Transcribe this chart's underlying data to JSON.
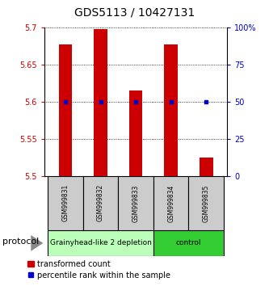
{
  "title": "GDS5113 / 10427131",
  "samples": [
    "GSM999831",
    "GSM999832",
    "GSM999833",
    "GSM999834",
    "GSM999835"
  ],
  "red_values": [
    5.677,
    5.697,
    5.615,
    5.677,
    5.525
  ],
  "blue_pct": [
    50,
    50,
    50,
    50,
    50
  ],
  "y_min": 5.5,
  "y_max": 5.7,
  "y_ticks_left": [
    5.5,
    5.55,
    5.6,
    5.65,
    5.7
  ],
  "y_ticks_right": [
    0,
    25,
    50,
    75,
    100
  ],
  "groups": [
    {
      "label": "Grainyhead-like 2 depletion",
      "indices": [
        0,
        1,
        2
      ],
      "color": "#bbffbb",
      "border": "#000000"
    },
    {
      "label": "control",
      "indices": [
        3,
        4
      ],
      "color": "#33cc33",
      "border": "#000000"
    }
  ],
  "protocol_label": "protocol",
  "bar_color": "#cc0000",
  "blue_color": "#0000cc",
  "bar_bottom": 5.5,
  "title_fontsize": 10,
  "tick_fontsize": 7,
  "sample_fontsize": 5.5,
  "group_fontsize": 6.5,
  "legend_fontsize": 7
}
